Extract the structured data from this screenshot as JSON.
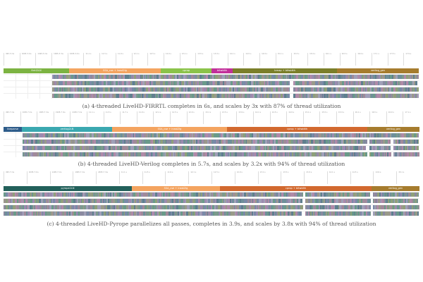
{
  "figures": [
    {
      "caption": "(a) 4-threaded LiveHD-FIRRTL  completes in 6s, and scales by 3x with 87% of thread utilization",
      "ticks": [
        "495.3 ms",
        "1095.3 ms",
        "1495.3 ms",
        "1995.3 ms",
        "2495.3 ms",
        "11.1 s",
        "11.5 s",
        "11.9 s",
        "12.1 s",
        "12.5 s",
        "12.9 s",
        "13.1 s",
        "13.5 s",
        "13.9 s",
        "14.1 s",
        "14.5 s",
        "14.9 s",
        "15.1 s",
        "15.5 s",
        "15.9 s",
        "16.1 s",
        "16.5 s",
        "16.9 s",
        "17.1 s",
        "17.5 s",
        "17.9 s"
      ],
      "phases": [
        {
          "label": "firrtl2LN",
          "color": "#7cb342"
        },
        {
          "label": "SSA_cse + lnast2lg",
          "color": "#f4a460"
        },
        {
          "label": "cprop",
          "color": "#8bc34a"
        },
        {
          "label": "bitwidth",
          "color": "#c2309a"
        },
        {
          "label": "lcmap + bitwidth",
          "color": "#7b7f2a"
        },
        {
          "label": "verilog_gen",
          "color": "#a67c2e"
        }
      ],
      "threads": 4
    },
    {
      "caption": "(b) 4-threaded LiveHD-Verilog  completes in 5.7s, and scales by 3.2x with 94% of thread utilization",
      "ticks": [
        "495.7 ms",
        "1095.7 ms",
        "1495.7 ms",
        "1995.7 ms",
        "2495.7 ms",
        "11.1 s",
        "11.5 s",
        "11.7 s",
        "11.9 s",
        "12.1 s",
        "12.5 s",
        "12.9 s",
        "13.1 s",
        "13.5 s",
        "13.9 s",
        "14.1 s",
        "14.5 s",
        "14.9 s",
        "15.1 s",
        "15.5 s",
        "15.9 s",
        "16.1 s",
        "16.5 s",
        "16.9 s",
        "17.1 s"
      ],
      "phases": [
        {
          "label": "liveparse",
          "color": "#2e5c8a"
        },
        {
          "label": "verilog2LN",
          "color": "#3aa8b0"
        },
        {
          "label": "SSA_cse + lnast2lg",
          "color": "#f4a460"
        },
        {
          "label": "cprop + bitwidth",
          "color": "#d2692f"
        },
        {
          "label": "verilog_gen",
          "color": "#a67c2e"
        }
      ],
      "threads": 4
    },
    {
      "caption": "(c) 4-threaded LiveHD-Pyrope parallelizes all passes, completes in 3.9s, and scales by 3.8x with 94% of thread utilization",
      "ticks": [
        "495.7 ms",
        "1095.7 ms",
        "1495.7 ms",
        "1995.7 ms",
        "2495.7 ms",
        "11.1 s",
        "11.5 s",
        "11.9 s",
        "12.1 s",
        "12.5 s",
        "12.9 s",
        "13.1 s",
        "13.5 s",
        "13.9 s",
        "14.1 s",
        "14.5 s",
        "14.9 s",
        "15.1 s"
      ],
      "phases": [
        {
          "label": "pyrope2LN",
          "color": "#22605a"
        },
        {
          "label": "SSA_cse + lnast2lg",
          "color": "#f4a460"
        },
        {
          "label": "cprop + bitwidth",
          "color": "#d2692f"
        },
        {
          "label": "verilog_gen",
          "color": "#a67c2e"
        }
      ],
      "threads": 4
    }
  ],
  "task_palette": [
    "#8a8aa0",
    "#7d9a8e",
    "#9b8bb0",
    "#6f8f9a",
    "#a08a9a",
    "#8fa07a",
    "#7a8aa8",
    "#b08aa8",
    "#6a9a8a",
    "#9a9a8a",
    "#5f7f8f",
    "#a0a0b8"
  ]
}
